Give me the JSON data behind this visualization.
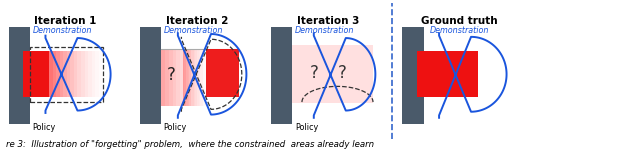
{
  "background_color": "#ffffff",
  "panel_titles": [
    "Iteration 1",
    "Iteration 2",
    "Iteration 3",
    "Ground truth"
  ],
  "wall_color": "#4a5a6a",
  "red_color": "#ee1111",
  "pink_light": "#ffcccc",
  "demo_color": "#1a55dd",
  "dashed_color": "#333333",
  "divider_color": "#3366cc",
  "caption": "re 3:  Illustration of \"forgetting\" problem,  where the constrained  areas already learn"
}
